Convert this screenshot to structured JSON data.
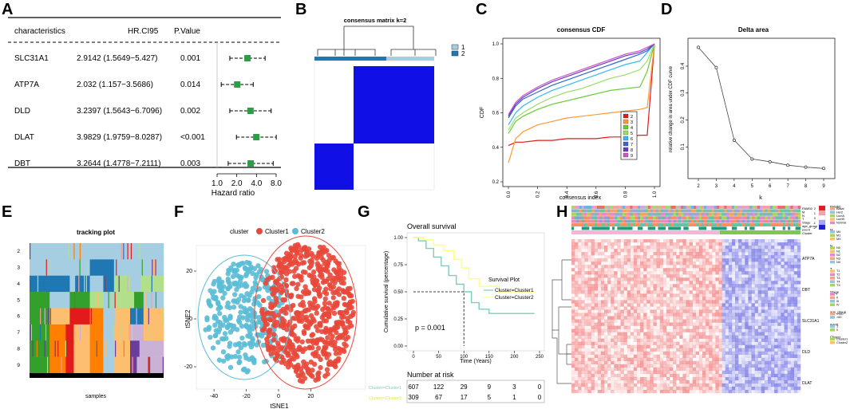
{
  "panels": {
    "A": {
      "letter": "A",
      "headers": [
        "characteristics",
        "HR.CI95",
        "P.Value"
      ],
      "rows": [
        {
          "name": "SLC31A1",
          "hrci": "2.9142 (1.5649−5.427)",
          "p": "0.001"
        },
        {
          "name": "ATP7A",
          "hrci": "2.032 (1.157−3.5686)",
          "p": "0.014"
        },
        {
          "name": "DLD",
          "hrci": "3.2397 (1.5643−6.7096)",
          "p": "0.002"
        },
        {
          "name": "DLAT",
          "hrci": "3.9829 (1.9759−8.0287)",
          "p": "<0.001"
        },
        {
          "name": "DBT",
          "hrci": "3.2644 (1.4778−7.2111)",
          "p": "0.003"
        }
      ],
      "xticks": [
        "1.0",
        "2.0",
        "4.0",
        "8.0"
      ],
      "xlabel": "Hazard ratio"
    },
    "B": {
      "letter": "B",
      "title": "consensus matrix k=2",
      "legend": [
        "1",
        "2"
      ]
    },
    "C": {
      "letter": "C",
      "title": "consensus CDF",
      "xlabel": "consensus index",
      "ylabel": "CDF",
      "legend": [
        "2",
        "3",
        "4",
        "5",
        "6",
        "7",
        "8",
        "9"
      ],
      "xticks": [
        "0.0",
        "0.2",
        "0.4",
        "0.6",
        "0.8",
        "1.0"
      ],
      "yticks": [
        "0.2",
        "0.4",
        "0.6",
        "0.8",
        "1.0"
      ]
    },
    "D": {
      "letter": "D",
      "title": "Delta area",
      "xlabel": "k",
      "ylabel": "relative change in area under CDF curve",
      "xticks": [
        "2",
        "3",
        "4",
        "5",
        "6",
        "7",
        "8",
        "9"
      ],
      "yticks": [
        "0.1",
        "0.2",
        "0.3",
        "0.4"
      ]
    },
    "E": {
      "letter": "E",
      "title": "tracking plot",
      "xlabel": "samples",
      "rows": [
        "2",
        "3",
        "4",
        "5",
        "6",
        "7",
        "8",
        "9"
      ]
    },
    "F": {
      "letter": "F",
      "legend_title": "cluster",
      "legend": [
        "Cluster1",
        "Cluster2"
      ],
      "xlabel": "tSNE1",
      "ylabel": "tSNE2",
      "xticks": [
        "-40",
        "-20",
        "0",
        "20"
      ],
      "yticks": [
        "-20",
        "0",
        "20"
      ]
    },
    "G": {
      "letter": "G",
      "title": "Overall survival",
      "ylabel": "Cumulative survival (percentage)",
      "xlabel": "Time (Years)",
      "pvalue": "p = 0.001",
      "legend_title": "Survival Plot",
      "legend": [
        "Cluster=Cluster1",
        "Cluster=Cluster2"
      ],
      "xticks": [
        "0",
        "50",
        "100",
        "150",
        "200",
        "250"
      ],
      "yticks": [
        "0.00",
        "0.25",
        "0.50",
        "0.75",
        "1.00"
      ],
      "risk_title": "Number at risk",
      "risk_labels": [
        "Cluster=Cluster1",
        "Cluster=Cluster2"
      ],
      "risk": [
        [
          "607",
          "122",
          "29",
          "9",
          "3",
          "0"
        ],
        [
          "309",
          "67",
          "17",
          "5",
          "1",
          "0"
        ]
      ]
    },
    "H": {
      "letter": "H",
      "track_labels": [
        "PAM50",
        "M",
        "N",
        "T",
        "Stage",
        "age_group",
        "event",
        "Cluster"
      ],
      "genes": [
        "ATP7A",
        "DBT",
        "SLC31A1",
        "DLD",
        "DLAT"
      ],
      "colorscale": [
        "2",
        "1",
        "0",
        "-1",
        "-2"
      ],
      "legend": [
        {
          "title": "PAM50",
          "items": [
            "Basal",
            "Her2",
            "LumA",
            "LumB",
            "Normal"
          ]
        },
        {
          "title": "M",
          "items": [
            "M0",
            "M1",
            "MX"
          ]
        },
        {
          "title": "N",
          "items": [
            "N0",
            "N1",
            "N2",
            "N3",
            "NX"
          ]
        },
        {
          "title": "T",
          "items": [
            "T1",
            "T2",
            "T3",
            "T4",
            "TX"
          ]
        },
        {
          "title": "Stage",
          "items": [
            "I",
            "II",
            "III",
            "IV"
          ]
        },
        {
          "title": "age_group",
          "items": [
            "<=60",
            ">60"
          ]
        },
        {
          "title": "event",
          "items": [
            "1",
            "0"
          ]
        },
        {
          "title": "Cluster",
          "items": [
            "Cluster1",
            "Cluster2"
          ]
        }
      ]
    }
  },
  "colors": {
    "forest_box": "#2e9e46",
    "heat_blue": "#1010e6",
    "cdf": [
      "#e31a1c",
      "#ff9933",
      "#66cc33",
      "#99dd66",
      "#33bbee",
      "#3366dd",
      "#6a3db8",
      "#cc55cc"
    ],
    "cluster1": "#e8483a",
    "cluster2": "#5bbcd6",
    "km1": "#7fcdbb",
    "km2": "#ffff80"
  },
  "chart_data": [
    {
      "type": "table",
      "title": "Forest plot (A)",
      "categories": [
        "SLC31A1",
        "ATP7A",
        "DLD",
        "DLAT",
        "DBT"
      ],
      "hr": [
        2.9142,
        2.032,
        3.2397,
        3.9829,
        3.2644
      ],
      "lower": [
        1.5649,
        1.157,
        1.5643,
        1.9759,
        1.4778
      ],
      "upper": [
        5.427,
        3.5686,
        6.7096,
        8.0287,
        7.2111
      ],
      "xlabel": "Hazard ratio",
      "xscale": "log2",
      "xlim": [
        1,
        8
      ]
    },
    {
      "type": "line",
      "title": "consensus CDF",
      "xlabel": "consensus index",
      "ylabel": "CDF",
      "x": [
        0,
        0.05,
        0.1,
        0.2,
        0.3,
        0.4,
        0.5,
        0.6,
        0.7,
        0.8,
        0.9,
        0.95,
        1.0
      ],
      "series": [
        {
          "name": "2",
          "values": [
            0.41,
            0.43,
            0.43,
            0.44,
            0.44,
            0.45,
            0.45,
            0.45,
            0.46,
            0.46,
            0.47,
            0.47,
            1.0
          ]
        },
        {
          "name": "3",
          "values": [
            0.31,
            0.45,
            0.49,
            0.53,
            0.55,
            0.57,
            0.58,
            0.59,
            0.6,
            0.61,
            0.62,
            0.63,
            1.0
          ]
        },
        {
          "name": "4",
          "values": [
            0.48,
            0.55,
            0.58,
            0.62,
            0.65,
            0.67,
            0.69,
            0.71,
            0.73,
            0.74,
            0.75,
            0.84,
            1.0
          ]
        },
        {
          "name": "5",
          "values": [
            0.5,
            0.57,
            0.6,
            0.65,
            0.69,
            0.72,
            0.74,
            0.77,
            0.8,
            0.82,
            0.85,
            0.9,
            1.0
          ]
        },
        {
          "name": "6",
          "values": [
            0.53,
            0.6,
            0.64,
            0.69,
            0.73,
            0.76,
            0.79,
            0.82,
            0.85,
            0.88,
            0.9,
            0.95,
            1.0
          ]
        },
        {
          "name": "7",
          "values": [
            0.57,
            0.64,
            0.68,
            0.72,
            0.76,
            0.79,
            0.82,
            0.85,
            0.88,
            0.91,
            0.94,
            0.96,
            1.0
          ]
        },
        {
          "name": "8",
          "values": [
            0.58,
            0.65,
            0.69,
            0.74,
            0.78,
            0.81,
            0.84,
            0.87,
            0.9,
            0.93,
            0.95,
            0.97,
            1.0
          ]
        },
        {
          "name": "9",
          "values": [
            0.59,
            0.66,
            0.7,
            0.75,
            0.79,
            0.82,
            0.85,
            0.88,
            0.91,
            0.94,
            0.96,
            0.98,
            1.0
          ]
        }
      ],
      "xlim": [
        0,
        1
      ],
      "ylim": [
        0.2,
        1.0
      ]
    },
    {
      "type": "line",
      "title": "Delta area",
      "xlabel": "k",
      "ylabel": "relative change in area under CDF curve",
      "x": [
        2,
        3,
        4,
        5,
        6,
        7,
        8,
        9
      ],
      "values": [
        0.47,
        0.395,
        0.125,
        0.055,
        0.045,
        0.032,
        0.025,
        0.02
      ],
      "ylim": [
        0,
        0.48
      ]
    },
    {
      "type": "line",
      "title": "Overall survival",
      "xlabel": "Time (Years)",
      "ylabel": "Cumulative survival (percentage)",
      "series": [
        {
          "name": "Cluster=Cluster1",
          "x": [
            0,
            10,
            25,
            40,
            55,
            70,
            85,
            100,
            115,
            130,
            150,
            240
          ],
          "values": [
            1.0,
            0.97,
            0.9,
            0.82,
            0.74,
            0.65,
            0.57,
            0.5,
            0.4,
            0.34,
            0.3,
            0.3
          ]
        },
        {
          "name": "Cluster=Cluster2",
          "x": [
            0,
            20,
            40,
            60,
            80,
            95,
            110,
            130,
            170,
            240
          ],
          "values": [
            1.0,
            0.98,
            0.93,
            0.88,
            0.8,
            0.72,
            0.62,
            0.55,
            0.5,
            0.5
          ]
        }
      ],
      "median_survival": 100,
      "pvalue": "p = 0.001",
      "xlim": [
        0,
        250
      ],
      "ylim": [
        0,
        1
      ]
    }
  ]
}
